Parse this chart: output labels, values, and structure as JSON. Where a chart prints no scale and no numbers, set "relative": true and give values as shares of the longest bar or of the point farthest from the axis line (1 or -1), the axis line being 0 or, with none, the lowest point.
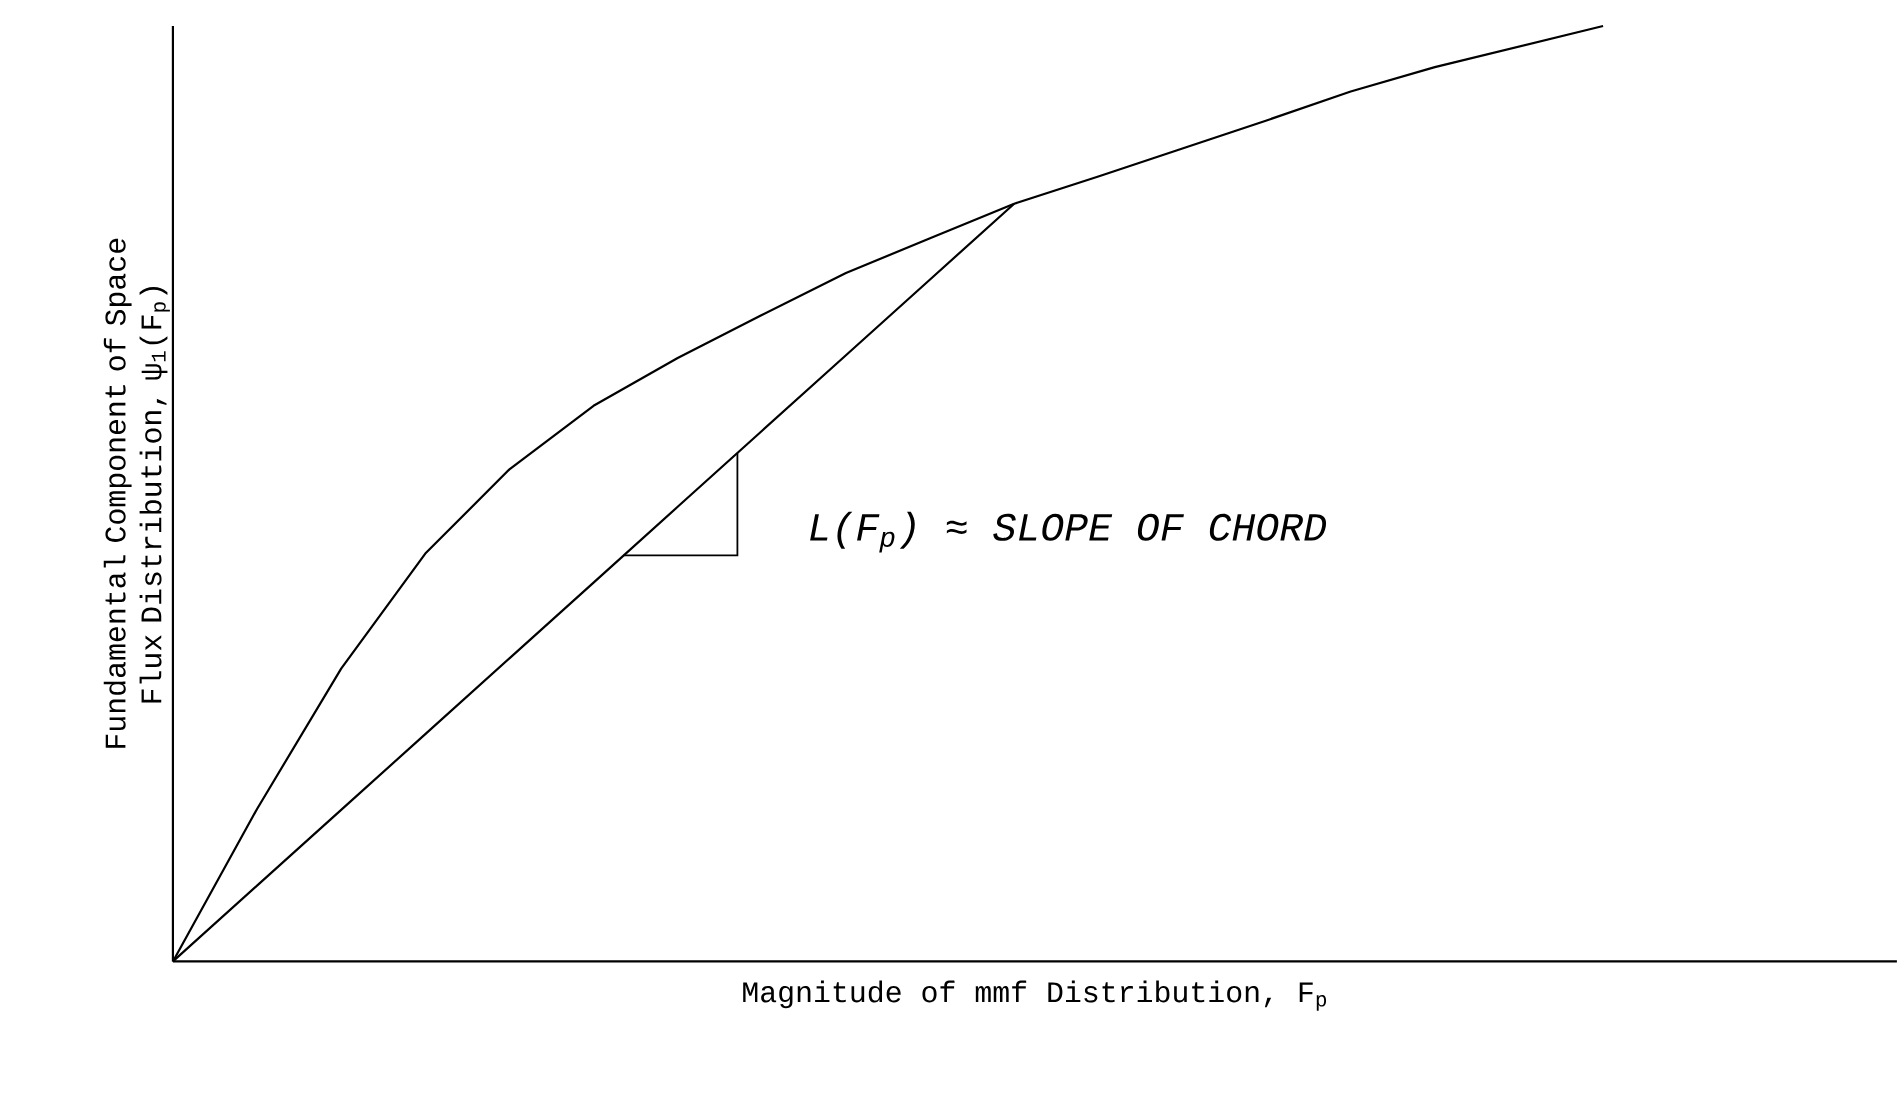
{
  "chart_data": {
    "type": "line",
    "relative": true,
    "xlabel": "Magnitude of mmf Distribution, F$_{p}$",
    "ylabel": "Fundamental Component of Space Flux Distribution, ψ$_{1}$(F$_{p}$)",
    "annotations": [
      "L(F$_{p}$) ≈ SLOPE OF CHORD"
    ],
    "categories": [
      null,
      null,
      null,
      null,
      null,
      null,
      null,
      null,
      null,
      null,
      null,
      null,
      null,
      null,
      null,
      null,
      null,
      null
    ],
    "series": [
      {
        "color": "#000000",
        "values": [
          0,
          0.163,
          0.313,
          0.436,
          0.526,
          0.594,
          0.645,
          0.691,
          0.736,
          0.773,
          0.81,
          0.839,
          0.869,
          0.899,
          0.93,
          0.956,
          0.978,
          1.0
        ]
      },
      {
        "color": "#000000",
        "values": [
          0,
          0.081,
          0.162,
          0.243,
          0.324,
          0.405,
          0.486,
          0.567,
          0.648,
          0.729,
          0.81,
          null,
          null,
          null,
          null,
          null,
          null,
          null
        ]
      }
    ],
    "marker": "none",
    "line_style": "solid"
  }
}
